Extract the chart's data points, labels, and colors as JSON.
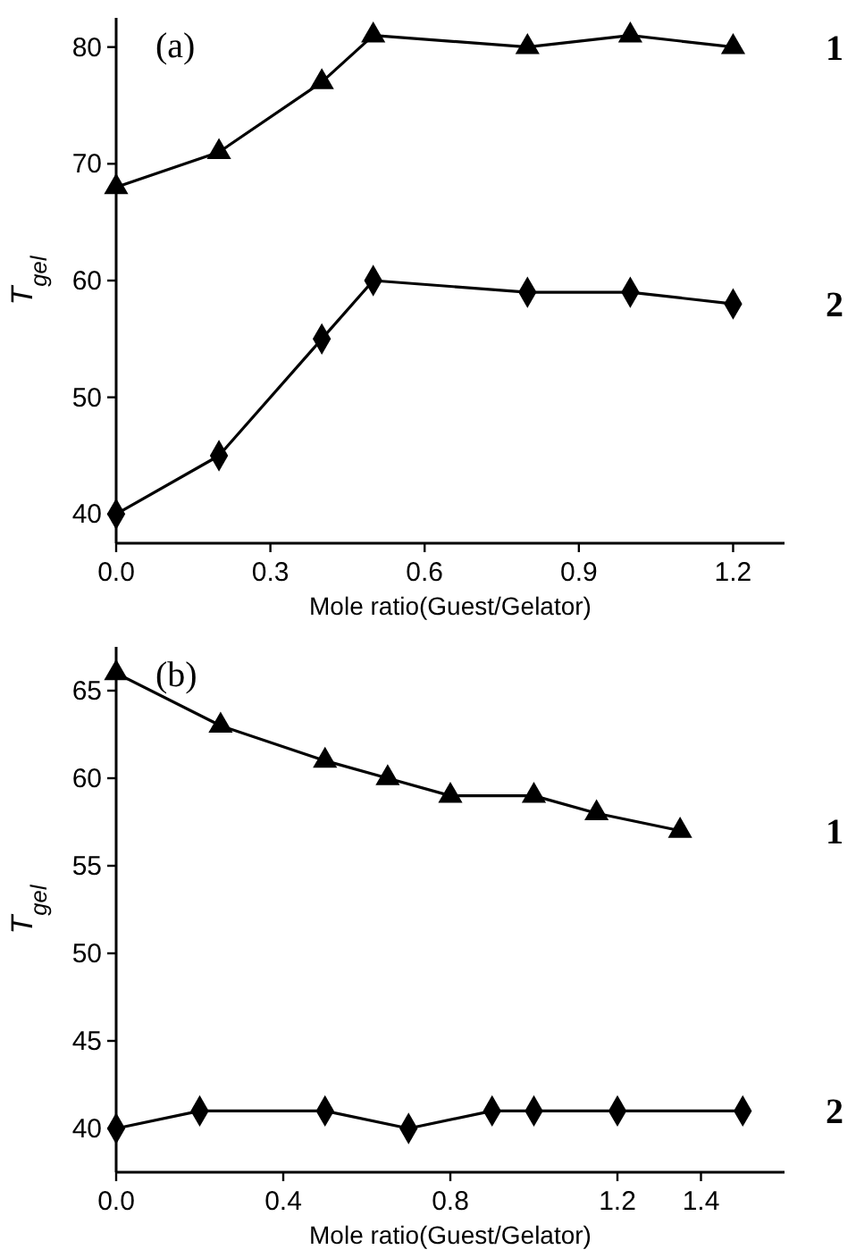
{
  "chart_data": [
    {
      "type": "line",
      "xlabel": "Mole ratio(Guest/Gelator)",
      "ylabel": "T$_{gel}$",
      "annotations": [
        "(a)"
      ],
      "xlim": [
        0,
        1.3
      ],
      "xticks": [
        {
          "value": 0,
          "label": "0.0"
        },
        0.3,
        0.6,
        0.9,
        1.2
      ],
      "ylim": [
        37.5,
        82.5
      ],
      "yticks": [
        40,
        50,
        60,
        70,
        80
      ],
      "grid": false,
      "series": [
        {
          "name": "1",
          "color": "#000000",
          "marker": "triangle",
          "x": [
            0,
            0.2,
            0.4,
            0.5,
            0.8,
            1.0,
            1.2
          ],
          "values": [
            68,
            71,
            77,
            81,
            80,
            81,
            80
          ]
        },
        {
          "name": "2",
          "color": "#000000",
          "marker": "diamond",
          "x": [
            0,
            0.2,
            0.4,
            0.5,
            0.8,
            1.0,
            1.2
          ],
          "values": [
            40,
            45,
            55,
            60,
            59,
            59,
            58
          ]
        }
      ]
    },
    {
      "type": "line",
      "xlabel": "Mole ratio(Guest/Gelator)",
      "ylabel": "T$_{gel}$",
      "annotations": [
        "(b)"
      ],
      "xlim": [
        0,
        1.6
      ],
      "xticks": [
        {
          "value": 0,
          "label": "0.0"
        },
        0.4,
        0.8,
        1.2,
        1.4
      ],
      "ylim": [
        37.5,
        67.5
      ],
      "yticks": [
        40,
        45,
        50,
        55,
        60,
        65
      ],
      "grid": false,
      "series": [
        {
          "name": "1",
          "color": "#000000",
          "marker": "triangle",
          "x": [
            0,
            0.25,
            0.5,
            0.65,
            0.8,
            1.0,
            1.15,
            1.35
          ],
          "values": [
            66,
            63,
            61,
            60,
            59,
            59,
            58,
            57
          ]
        },
        {
          "name": "2",
          "color": "#000000",
          "marker": "diamond",
          "x": [
            0,
            0.2,
            0.5,
            0.7,
            0.9,
            1.0,
            1.2,
            1.5
          ],
          "values": [
            40,
            41,
            41,
            40,
            41,
            41,
            41,
            41
          ]
        }
      ]
    }
  ]
}
